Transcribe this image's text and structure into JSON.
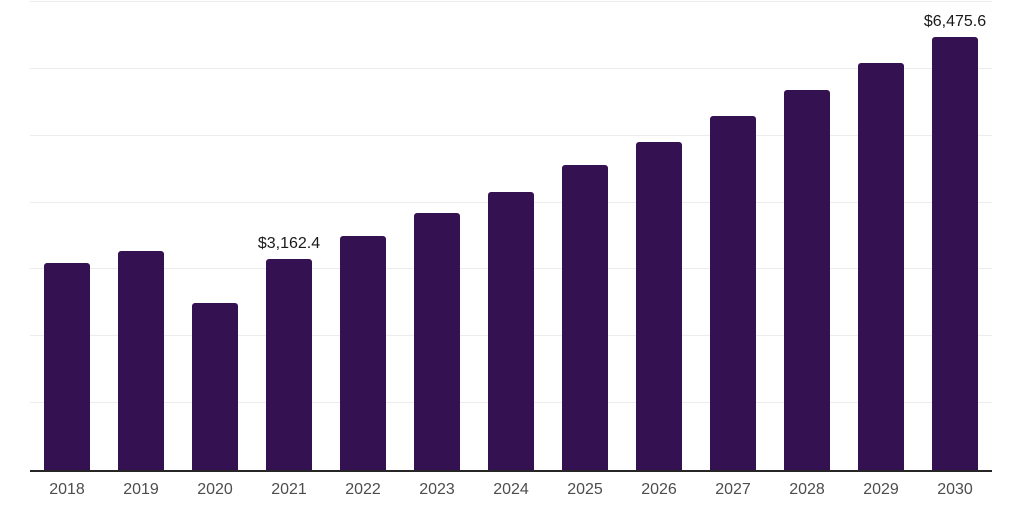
{
  "chart_data": {
    "type": "bar",
    "title": "",
    "xlabel": "",
    "ylabel": "",
    "categories": [
      "2018",
      "2019",
      "2020",
      "2021",
      "2022",
      "2023",
      "2024",
      "2025",
      "2026",
      "2027",
      "2028",
      "2029",
      "2030"
    ],
    "values": [
      3100,
      3280,
      2505,
      3162.4,
      3505,
      3850,
      4165,
      4555,
      4910,
      5300,
      5690,
      6095,
      6475.6
    ],
    "data_labels": {
      "2021": "$3,162.4",
      "2030": "$6,475.6"
    },
    "ylim": [
      0,
      7000
    ],
    "grid_interval": 1000,
    "grid": true,
    "legend": false,
    "colors": {
      "bar": "#341150",
      "gridline": "#ececec",
      "axis_line": "#262626",
      "tick_label": "#4d4d4d",
      "data_label": "#1a1a1a",
      "background": "#ffffff"
    }
  }
}
